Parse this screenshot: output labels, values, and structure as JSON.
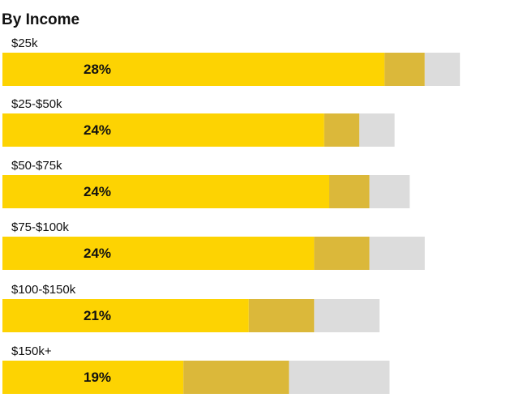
{
  "chart_data": {
    "type": "stacked-bar-horizontal",
    "title": "By Income",
    "categories": [
      "$25k",
      "$25-$50k",
      "$50-$75k",
      "$75-$100k",
      "$100-$150k",
      "$150k+"
    ],
    "bar_labels": [
      "28%",
      "24%",
      "24%",
      "24%",
      "21%",
      "19%"
    ],
    "series": [
      {
        "color": "#fdd302",
        "values": [
          76,
          64,
          65,
          62,
          49,
          36
        ]
      },
      {
        "color": "#dbb83a",
        "values": [
          8,
          7,
          8,
          11,
          13,
          21
        ]
      },
      {
        "color": "#dcdcdc",
        "values": [
          7,
          7,
          8,
          11,
          13,
          20
        ]
      }
    ],
    "xlim": [
      0,
      100
    ]
  }
}
